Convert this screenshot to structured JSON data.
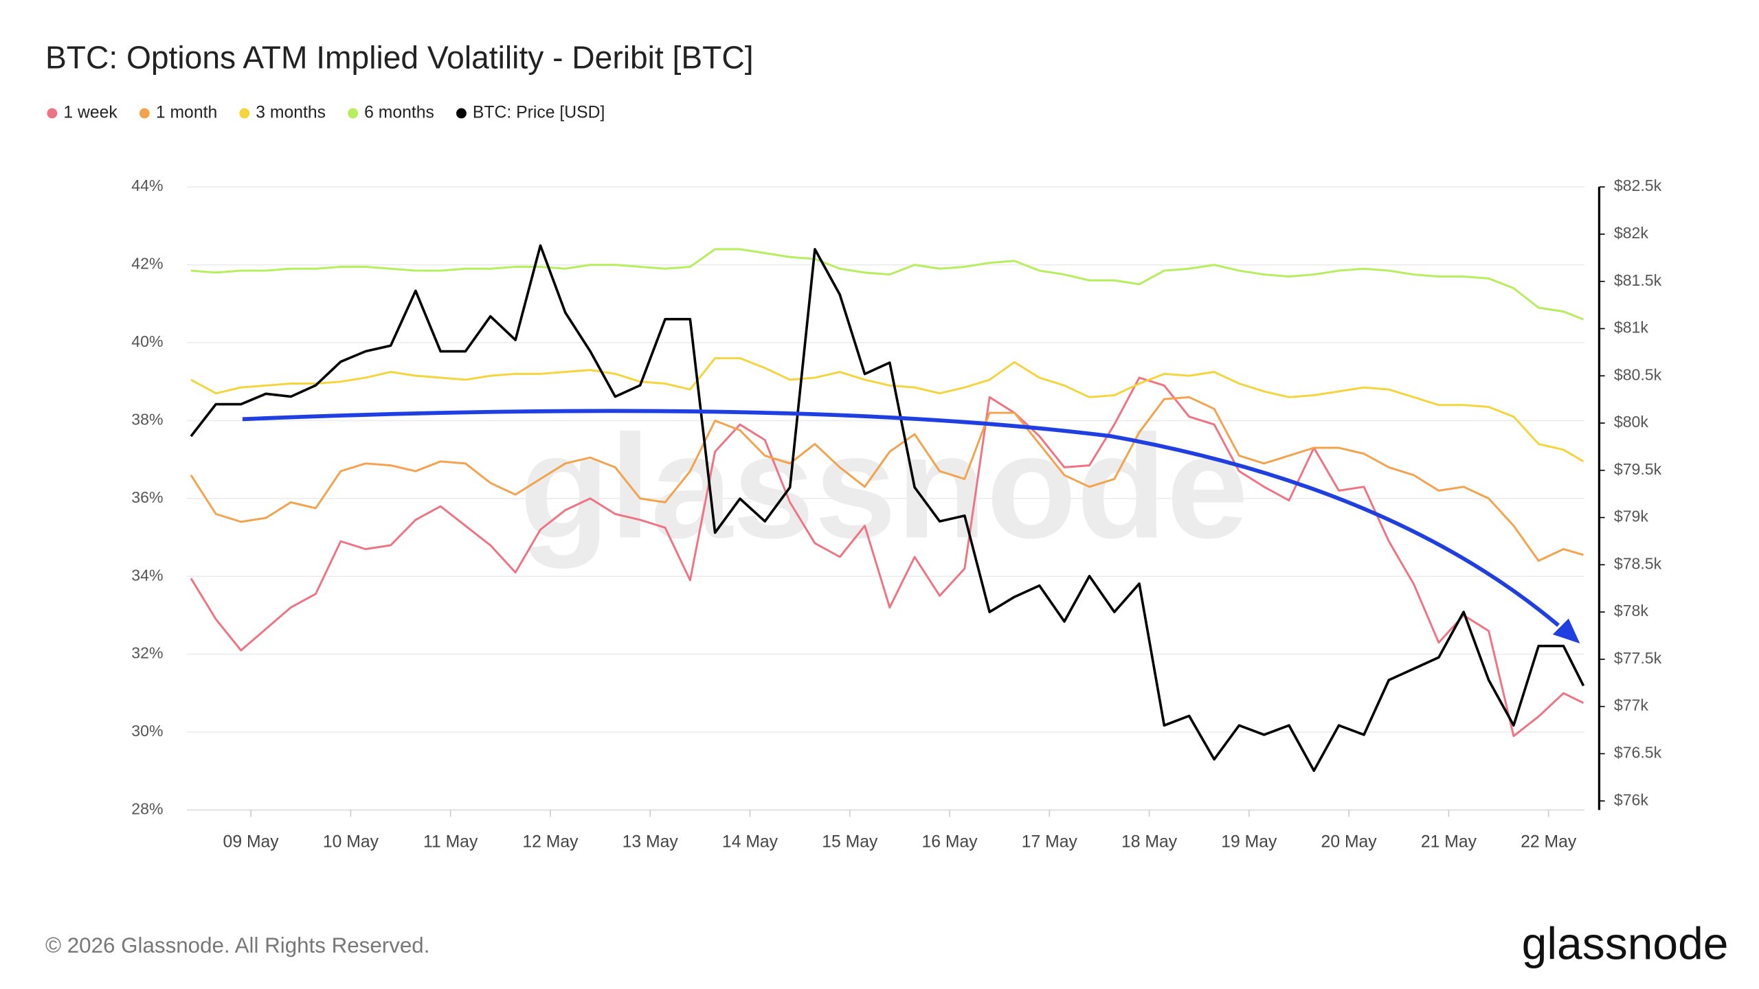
{
  "chart_data": {
    "type": "line",
    "title": "BTC: Options ATM Implied Volatility - Deribit [BTC]",
    "watermark": "glassnode",
    "footer": "© 2026 Glassnode. All Rights Reserved.",
    "logo": "glassnode",
    "grid": true,
    "x": [
      8.4,
      8.65,
      8.9,
      9.15,
      9.4,
      9.65,
      9.9,
      10.15,
      10.4,
      10.65,
      10.9,
      11.15,
      11.4,
      11.65,
      11.9,
      12.15,
      12.4,
      12.65,
      12.9,
      13.15,
      13.4,
      13.65,
      13.9,
      14.15,
      14.4,
      14.65,
      14.9,
      15.15,
      15.4,
      15.65,
      15.9,
      16.15,
      16.4,
      16.65,
      16.9,
      17.15,
      17.4,
      17.65,
      17.9,
      18.15,
      18.4,
      18.65,
      18.9,
      19.15,
      19.4,
      19.65,
      19.9,
      20.15,
      20.4,
      20.65,
      20.9,
      21.15,
      21.4,
      21.65,
      21.9,
      22.15,
      22.35
    ],
    "xlim": [
      8.36,
      22.36
    ],
    "xticks": [
      {
        "value": 9,
        "label": "09 May"
      },
      {
        "value": 10,
        "label": "10 May"
      },
      {
        "value": 11,
        "label": "11 May"
      },
      {
        "value": 12,
        "label": "12 May"
      },
      {
        "value": 13,
        "label": "13 May"
      },
      {
        "value": 14,
        "label": "14 May"
      },
      {
        "value": 15,
        "label": "15 May"
      },
      {
        "value": 16,
        "label": "16 May"
      },
      {
        "value": 17,
        "label": "17 May"
      },
      {
        "value": 18,
        "label": "18 May"
      },
      {
        "value": 19,
        "label": "19 May"
      },
      {
        "value": 20,
        "label": "20 May"
      },
      {
        "value": 21,
        "label": "21 May"
      },
      {
        "value": 22,
        "label": "22 May"
      }
    ],
    "ylim": [
      28,
      44
    ],
    "yticks": [
      {
        "value": 28,
        "label": "28%"
      },
      {
        "value": 30,
        "label": "30%"
      },
      {
        "value": 32,
        "label": "32%"
      },
      {
        "value": 34,
        "label": "34%"
      },
      {
        "value": 36,
        "label": "36%"
      },
      {
        "value": 38,
        "label": "38%"
      },
      {
        "value": 40,
        "label": "40%"
      },
      {
        "value": 42,
        "label": "42%"
      },
      {
        "value": 44,
        "label": "44%"
      }
    ],
    "y2lim": [
      75904,
      82500
    ],
    "y2ticks": [
      {
        "value": 76000,
        "label": "$76k"
      },
      {
        "value": 76500,
        "label": "$76.5k"
      },
      {
        "value": 77000,
        "label": "$77k"
      },
      {
        "value": 77500,
        "label": "$77.5k"
      },
      {
        "value": 78000,
        "label": "$78k"
      },
      {
        "value": 78500,
        "label": "$78.5k"
      },
      {
        "value": 79000,
        "label": "$79k"
      },
      {
        "value": 79500,
        "label": "$79.5k"
      },
      {
        "value": 80000,
        "label": "$80k"
      },
      {
        "value": 80500,
        "label": "$80.5k"
      },
      {
        "value": 81000,
        "label": "$81k"
      },
      {
        "value": 81500,
        "label": "$81.5k"
      },
      {
        "value": 82000,
        "label": "$82k"
      },
      {
        "value": 82500,
        "label": "$82.5k"
      }
    ],
    "series": [
      {
        "name": "1 week",
        "color": "#f07383",
        "values": [
          33.95,
          32.9,
          32.1,
          32.65,
          33.2,
          33.55,
          34.9,
          34.7,
          34.8,
          35.45,
          35.8,
          35.3,
          34.8,
          34.1,
          35.2,
          35.7,
          36.0,
          35.6,
          35.45,
          35.25,
          33.9,
          37.2,
          37.9,
          37.5,
          35.9,
          34.85,
          34.5,
          35.3,
          33.2,
          34.5,
          33.5,
          34.2,
          38.6,
          38.2,
          37.6,
          36.8,
          36.85,
          37.9,
          39.1,
          38.9,
          38.1,
          37.9,
          36.7,
          36.3,
          35.95,
          37.3,
          36.2,
          36.3,
          34.9,
          33.8,
          32.3,
          33.0,
          32.6,
          29.9,
          30.4,
          31.0,
          30.75
        ]
      },
      {
        "name": "1 month",
        "color": "#f4a24c",
        "values": [
          36.6,
          35.6,
          35.4,
          35.5,
          35.9,
          35.75,
          36.7,
          36.9,
          36.85,
          36.7,
          36.95,
          36.9,
          36.4,
          36.1,
          36.5,
          36.9,
          37.05,
          36.8,
          36.0,
          35.9,
          36.7,
          38.0,
          37.75,
          37.1,
          36.9,
          37.4,
          36.8,
          36.3,
          37.2,
          37.65,
          36.7,
          36.5,
          38.2,
          38.2,
          37.4,
          36.6,
          36.3,
          36.5,
          37.7,
          38.55,
          38.6,
          38.3,
          37.1,
          36.9,
          37.1,
          37.3,
          37.3,
          37.15,
          36.8,
          36.6,
          36.2,
          36.3,
          36.0,
          35.3,
          34.4,
          34.7,
          34.55
        ]
      },
      {
        "name": "3 months",
        "color": "#f6d43c",
        "values": [
          39.05,
          38.7,
          38.85,
          38.9,
          38.95,
          38.95,
          39.0,
          39.1,
          39.25,
          39.15,
          39.1,
          39.05,
          39.15,
          39.2,
          39.2,
          39.25,
          39.3,
          39.2,
          39.0,
          38.95,
          38.8,
          39.6,
          39.6,
          39.35,
          39.05,
          39.1,
          39.25,
          39.05,
          38.9,
          38.85,
          38.7,
          38.85,
          39.05,
          39.5,
          39.1,
          38.9,
          38.6,
          38.65,
          38.95,
          39.2,
          39.15,
          39.25,
          38.95,
          38.75,
          38.6,
          38.65,
          38.75,
          38.85,
          38.8,
          38.6,
          38.4,
          38.4,
          38.35,
          38.1,
          37.4,
          37.25,
          36.95
        ]
      },
      {
        "name": "6 months",
        "color": "#b6ee5c",
        "values": [
          41.85,
          41.8,
          41.85,
          41.85,
          41.9,
          41.9,
          41.95,
          41.95,
          41.9,
          41.85,
          41.85,
          41.9,
          41.9,
          41.95,
          41.95,
          41.9,
          42.0,
          42.0,
          41.95,
          41.9,
          41.95,
          42.4,
          42.4,
          42.3,
          42.2,
          42.15,
          41.9,
          41.8,
          41.75,
          42.0,
          41.9,
          41.95,
          42.05,
          42.1,
          41.85,
          41.75,
          41.6,
          41.6,
          41.5,
          41.85,
          41.9,
          42.0,
          41.85,
          41.75,
          41.7,
          41.75,
          41.85,
          41.9,
          41.85,
          41.75,
          41.7,
          41.7,
          41.65,
          41.4,
          40.9,
          40.8,
          40.6
        ]
      },
      {
        "name": "BTC: Price [USD]",
        "color": "#000000",
        "axis": "y2",
        "values": [
          79860,
          80200,
          80200,
          80310,
          80280,
          80400,
          80650,
          80760,
          80820,
          81400,
          80760,
          80760,
          81130,
          80880,
          81880,
          81170,
          80760,
          80280,
          80400,
          81100,
          81100,
          78840,
          79200,
          78960,
          79320,
          81840,
          81360,
          80520,
          80640,
          79320,
          78960,
          79020,
          78000,
          78160,
          78280,
          77900,
          78380,
          78000,
          78300,
          76800,
          76900,
          76440,
          76800,
          76700,
          76800,
          76320,
          76800,
          76700,
          77280,
          77400,
          77520,
          78000,
          77280,
          76800,
          77640,
          77640,
          77220
        ]
      }
    ]
  }
}
